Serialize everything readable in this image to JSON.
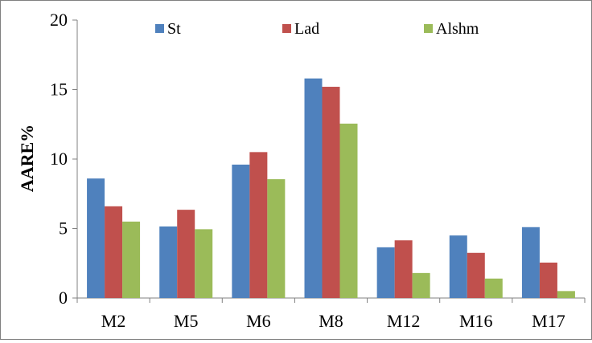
{
  "chart_data": {
    "type": "bar",
    "title": "",
    "xlabel": "",
    "ylabel": "AARE%",
    "ylim": [
      0,
      20
    ],
    "yticks": [
      0,
      5,
      10,
      15,
      20
    ],
    "grid": false,
    "legend_position": "top",
    "categories": [
      "M2",
      "M5",
      "M6",
      "M8",
      "M12",
      "M16",
      "M17"
    ],
    "series": [
      {
        "name": "St",
        "color": "#4F81BD",
        "values": [
          8.6,
          5.15,
          9.6,
          15.8,
          3.65,
          4.5,
          5.1
        ]
      },
      {
        "name": "Lad",
        "color": "#C0504D",
        "values": [
          6.6,
          6.35,
          10.5,
          15.2,
          4.15,
          3.25,
          2.55
        ]
      },
      {
        "name": "Alshm",
        "color": "#9BBB59",
        "values": [
          5.5,
          4.95,
          8.55,
          12.55,
          1.8,
          1.4,
          0.5
        ]
      }
    ]
  }
}
